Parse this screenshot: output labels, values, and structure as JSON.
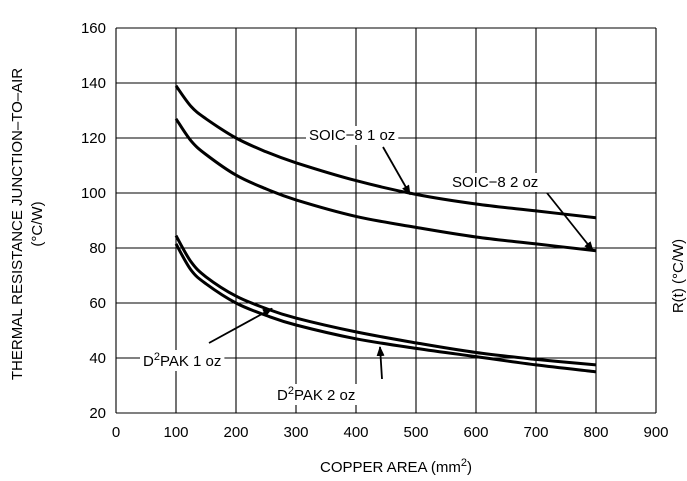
{
  "chart_data": {
    "type": "line",
    "xlabel": "COPPER AREA (mm2)",
    "xlabel_parts": {
      "main": "COPPER AREA (mm",
      "sup": "2",
      "end": ")"
    },
    "ylabel_line1": "THERMAL RESISTANCE JUNCTION–TO–AIR",
    "ylabel_line2": "(°C/W)",
    "right_edge_text": "R(t) (°C/W)",
    "xlim": [
      0,
      900
    ],
    "ylim": [
      20,
      160
    ],
    "xticks": [
      0,
      100,
      200,
      300,
      400,
      500,
      600,
      700,
      800,
      900
    ],
    "yticks": [
      20,
      40,
      60,
      80,
      100,
      120,
      140,
      160
    ],
    "grid": true,
    "series": [
      {
        "name": "SOIC−8 1 oz",
        "x": [
          100,
          125,
          150,
          200,
          250,
          300,
          400,
          500,
          600,
          700,
          800
        ],
        "y": [
          139,
          131.5,
          127,
          120,
          115,
          111,
          104.5,
          99.5,
          96,
          93.5,
          91
        ]
      },
      {
        "name": "SOIC−8 2 oz",
        "x": [
          100,
          125,
          150,
          200,
          250,
          300,
          400,
          500,
          600,
          700,
          800
        ],
        "y": [
          127,
          119,
          114,
          106.5,
          101.5,
          97.5,
          91.5,
          87.5,
          84,
          81.5,
          79
        ]
      },
      {
        "name": "D²PAK 1 oz",
        "x": [
          100,
          125,
          150,
          200,
          250,
          300,
          400,
          500,
          600,
          700,
          800
        ],
        "y": [
          84.5,
          75,
          69.5,
          62.5,
          58,
          54.5,
          49.5,
          45.5,
          42,
          39.5,
          37.5
        ]
      },
      {
        "name": "D²PAK 2 oz",
        "x": [
          100,
          125,
          150,
          200,
          250,
          300,
          400,
          500,
          600,
          700,
          800
        ],
        "y": [
          81.5,
          72,
          67,
          60,
          55.5,
          52,
          47,
          43.5,
          40.5,
          37.5,
          35
        ]
      }
    ],
    "annotations": [
      {
        "label": "SOIC−8 1 oz",
        "points_to": {
          "x": 490,
          "y": 99.5
        }
      },
      {
        "label": "SOIC−8 2 oz",
        "points_to": {
          "x": 795,
          "y": 79
        }
      },
      {
        "label_main": "D",
        "label_sup": "2",
        "label_rest": "PAK 1 oz",
        "points_to": {
          "x": 260,
          "y": 58
        }
      },
      {
        "label_main": "D",
        "label_sup": "2",
        "label_rest": "PAK 2 oz",
        "points_to": {
          "x": 440,
          "y": 44
        }
      }
    ]
  }
}
